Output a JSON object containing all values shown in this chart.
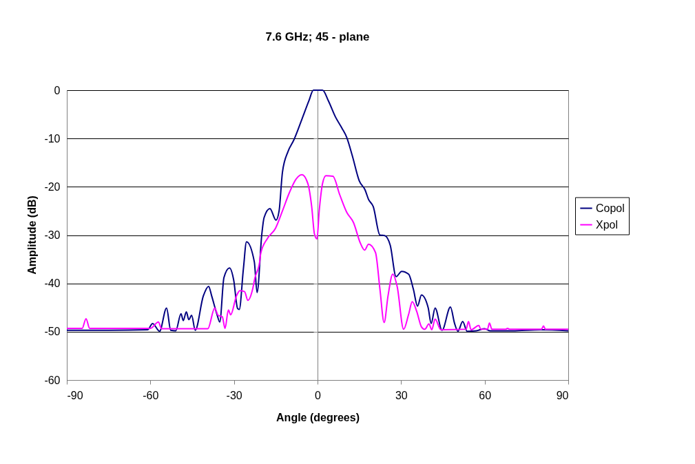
{
  "chart_data": {
    "type": "line",
    "title": "7.6 GHz; 45 - plane",
    "xlabel": "Angle (degrees)",
    "ylabel": "Amplitude (dB)",
    "xlim": [
      -90,
      90
    ],
    "xticks": [
      -90,
      -60,
      -30,
      0,
      30,
      60,
      90
    ],
    "ylim": [
      -60,
      0
    ],
    "yticks": [
      -60,
      -50,
      -40,
      -30,
      -20,
      -10,
      0
    ],
    "grid": "y",
    "legend": "right",
    "marker": "none",
    "line_style": "solid",
    "series": [
      {
        "name": "Copol",
        "color": "#000080",
        "x": [
          -90,
          -75,
          -61,
          -59.2,
          -56.7,
          -54.2,
          -52.7,
          -50.9,
          -49,
          -48.2,
          -47.1,
          -46.2,
          -45.2,
          -43.9,
          -41,
          -39.1,
          -38,
          -36.1,
          -35.1,
          -33.6,
          -31.6,
          -30.1,
          -28.7,
          -28.1,
          -26.6,
          -25.5,
          -22.7,
          -21.7,
          -20,
          -19.2,
          -17.1,
          -14.9,
          -13.8,
          -12.6,
          -10.6,
          -8.5,
          -5.6,
          -3.1,
          -1.5,
          1.8,
          3.9,
          6.4,
          8.8,
          10.5,
          12.5,
          15,
          17.1,
          18.3,
          20,
          22.4,
          24.1,
          26.1,
          28.2,
          30.2,
          32.7,
          34.4,
          35.9,
          37.3,
          39.7,
          40.8,
          42.2,
          44.7,
          47.7,
          49.2,
          50.4,
          52.1,
          53.7,
          57,
          60,
          62,
          70,
          80,
          90
        ],
        "values": [
          -49.7,
          -49.7,
          -49.6,
          -48.3,
          -49.9,
          -45.1,
          -49.7,
          -49.8,
          -46.3,
          -47.7,
          -45.9,
          -47.5,
          -46.6,
          -49.7,
          -42.6,
          -40.6,
          -42.6,
          -46.4,
          -48,
          -38.8,
          -36.8,
          -39.3,
          -45.2,
          -45.4,
          -36.9,
          -31.4,
          -35.5,
          -41.9,
          -29.8,
          -26.4,
          -24.5,
          -26.9,
          -25,
          -17,
          -12.7,
          -10.3,
          -6,
          -2.2,
          0,
          0,
          -2.2,
          -5.5,
          -7.9,
          -9.8,
          -13.6,
          -18.8,
          -20.7,
          -22.6,
          -24.1,
          -30,
          -30.1,
          -32.1,
          -38.6,
          -37.5,
          -38.1,
          -41.2,
          -44.7,
          -42.4,
          -45,
          -48.3,
          -45.1,
          -49.7,
          -44.9,
          -48.3,
          -49.9,
          -47.9,
          -49.9,
          -49.8,
          -49.4,
          -49.8,
          -49.8,
          -49.6,
          -49.8
        ]
      },
      {
        "name": "Xpol",
        "color": "#ff00ff",
        "x": [
          -90,
          -84.5,
          -83.1,
          -81.8,
          -60,
          -57.1,
          -56,
          -39.4,
          -36.9,
          -35.7,
          -34.2,
          -33.2,
          -32,
          -31.2,
          -29.1,
          -27.9,
          -26.2,
          -25,
          -23.3,
          -22.5,
          -20.8,
          -20.4,
          -18,
          -15.1,
          -12.6,
          -10.1,
          -7.7,
          -5.6,
          -3.5,
          -2.1,
          -1.1,
          -0.2,
          0.6,
          1.8,
          3,
          5.5,
          8,
          10.5,
          12.9,
          15.4,
          16.9,
          18.3,
          20.8,
          22.4,
          23.9,
          25.3,
          27,
          28.6,
          30.9,
          32.7,
          34,
          35.6,
          37.3,
          38.5,
          40,
          41,
          42.2,
          44.3,
          53.3,
          54.2,
          55.1,
          57.9,
          58.6,
          61,
          61.7,
          62.6,
          67.5,
          68.2,
          69,
          80.4,
          81.1,
          81.8,
          90
        ],
        "values": [
          -49.3,
          -49.3,
          -47.3,
          -49.3,
          -49.3,
          -48,
          -49.4,
          -49.4,
          -45.1,
          -46.6,
          -46.9,
          -49.3,
          -45.5,
          -46.5,
          -42.6,
          -41.5,
          -41.7,
          -43.5,
          -41.2,
          -38.9,
          -35.6,
          -33.8,
          -30.7,
          -28.6,
          -25,
          -21.2,
          -18.4,
          -17.5,
          -19.3,
          -24.1,
          -29.8,
          -30.8,
          -25,
          -19.3,
          -17.7,
          -17.8,
          -21.7,
          -25.3,
          -27.4,
          -31.7,
          -33.1,
          -31.9,
          -33.6,
          -41.2,
          -48.1,
          -42.6,
          -38.1,
          -40.7,
          -49.5,
          -46.4,
          -43.8,
          -45.8,
          -49,
          -49.5,
          -48.4,
          -49.6,
          -47.4,
          -49.6,
          -49.5,
          -47.9,
          -49.6,
          -48.7,
          -49.5,
          -49.5,
          -48.2,
          -49.5,
          -49.5,
          -49.3,
          -49.5,
          -49.5,
          -48.8,
          -49.5,
          -49.5
        ]
      }
    ]
  }
}
